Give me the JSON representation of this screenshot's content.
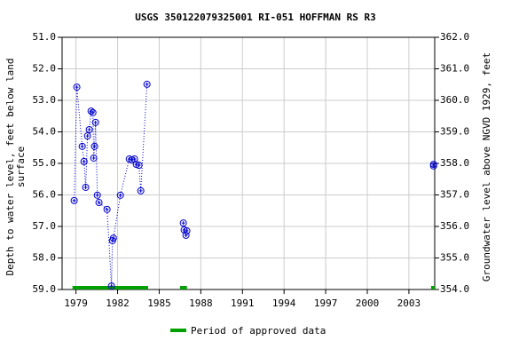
{
  "chart_data": {
    "type": "line",
    "title": "USGS 350122079325001 RI-051 HOFFMAN RS R3",
    "y_label": [
      "Depth to water level, feet below land",
      "surface"
    ],
    "y2_label": "Groundwater level above NGVD 1929, feet",
    "x": [
      1978.87,
      1979.06,
      1979.45,
      1979.58,
      1979.7,
      1979.83,
      1979.96,
      1980.09,
      1980.22,
      1980.28,
      1980.34,
      1980.41,
      1980.54,
      1980.66,
      1981.24,
      1981.56,
      1981.63,
      1981.7,
      1982.2,
      1982.84,
      1983.03,
      1983.22,
      1983.35,
      1983.54,
      1983.67,
      1984.12,
      null,
      1986.74,
      1986.8,
      1986.93,
      1986.99,
      null,
      2004.78,
      2004.78
    ],
    "values": [
      56.18,
      52.58,
      54.46,
      54.94,
      55.76,
      54.13,
      53.93,
      53.34,
      53.39,
      54.83,
      54.46,
      53.7,
      56.01,
      56.24,
      56.46,
      58.89,
      57.45,
      57.37,
      56.01,
      54.86,
      54.89,
      54.86,
      55.03,
      55.06,
      55.87,
      52.49,
      null,
      56.89,
      57.11,
      57.28,
      57.14,
      null,
      55.08,
      55.03
    ],
    "color": "#0000cc",
    "xlim": [
      1978,
      2004.86
    ],
    "xticks": [
      1979,
      1982,
      1985,
      1988,
      1991,
      1994,
      1997,
      2000,
      2003
    ],
    "ylim": [
      59,
      51
    ],
    "yticks": [
      {
        "value": 51,
        "label": "51.0"
      },
      {
        "value": 52,
        "label": "52.0"
      },
      {
        "value": 53,
        "label": "53.0"
      },
      {
        "value": 54,
        "label": "54.0"
      },
      {
        "value": 55,
        "label": "55.0"
      },
      {
        "value": 56,
        "label": "56.0"
      },
      {
        "value": 57,
        "label": "57.0"
      },
      {
        "value": 58,
        "label": "58.0"
      },
      {
        "value": 59,
        "label": "59.0"
      }
    ],
    "y2lim": [
      354,
      362
    ],
    "y2ticks": [
      {
        "value": 362,
        "label": "362.0"
      },
      {
        "value": 361,
        "label": "361.0"
      },
      {
        "value": 360,
        "label": "360.0"
      },
      {
        "value": 359,
        "label": "359.0"
      },
      {
        "value": 358,
        "label": "358.0"
      },
      {
        "value": 357,
        "label": "357.0"
      },
      {
        "value": 356,
        "label": "356.0"
      },
      {
        "value": 355,
        "label": "355.0"
      },
      {
        "value": 354,
        "label": "354.0"
      }
    ],
    "grid": true,
    "approved": {
      "name": "Period of approved data",
      "color": "#00a000",
      "periods": [
        [
          1978.75,
          1984.2
        ],
        [
          1986.5,
          1987.0
        ],
        [
          2004.6,
          2004.86
        ]
      ]
    }
  }
}
